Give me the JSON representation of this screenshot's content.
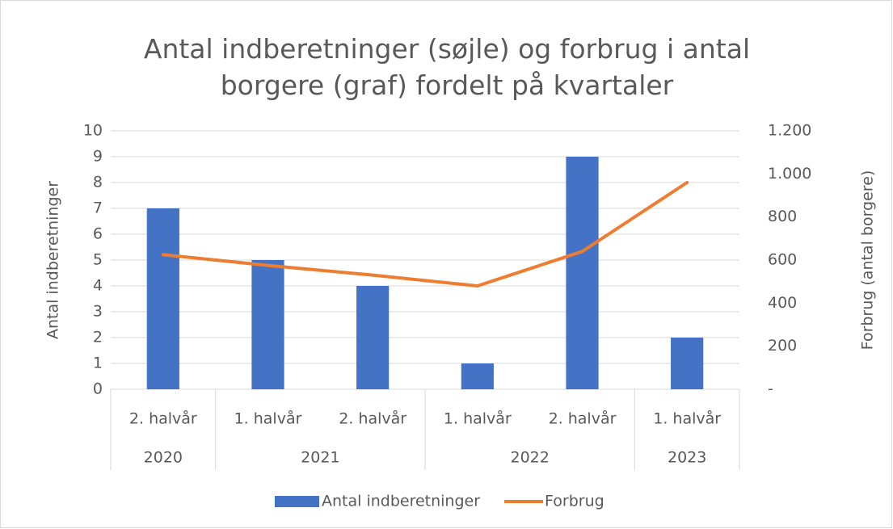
{
  "chart_data": {
    "type": "bar_line",
    "title": "Antal indberetninger (søjle) og forbrug i antal borgere (graf) fordelt på kvartaler",
    "groups": [
      {
        "name": "2020",
        "categories": [
          "2. halvår"
        ]
      },
      {
        "name": "2021",
        "categories": [
          "1. halvår",
          "2. halvår"
        ]
      },
      {
        "name": "2022",
        "categories": [
          "1. halvår",
          "2. halvår"
        ]
      },
      {
        "name": "2023",
        "categories": [
          "1. halvår"
        ]
      }
    ],
    "series": [
      {
        "name": "Antal indberetninger",
        "type": "bar",
        "color": "#4472c4",
        "values": [
          7,
          5,
          4,
          1,
          9,
          2
        ]
      },
      {
        "name": "Forbrug",
        "type": "line",
        "axis": "y2",
        "color": "#ed7d31",
        "values": [
          625,
          575,
          530,
          480,
          640,
          960
        ]
      }
    ],
    "y_label": "Antal indberetninger",
    "y2_label": "Forbrug  (antal borgere)",
    "ylim": [
      0,
      10
    ],
    "yticks": [
      0,
      1,
      2,
      3,
      4,
      5,
      6,
      7,
      8,
      9,
      10
    ],
    "y2lim": [
      0,
      1200
    ],
    "y2ticks": [
      {
        "value": 0,
        "label": "-"
      },
      200,
      400,
      600,
      800,
      {
        "value": 1000,
        "label": "1.000"
      },
      {
        "value": 1200,
        "label": "1.200"
      }
    ],
    "grid": true,
    "legend": "bottom"
  }
}
